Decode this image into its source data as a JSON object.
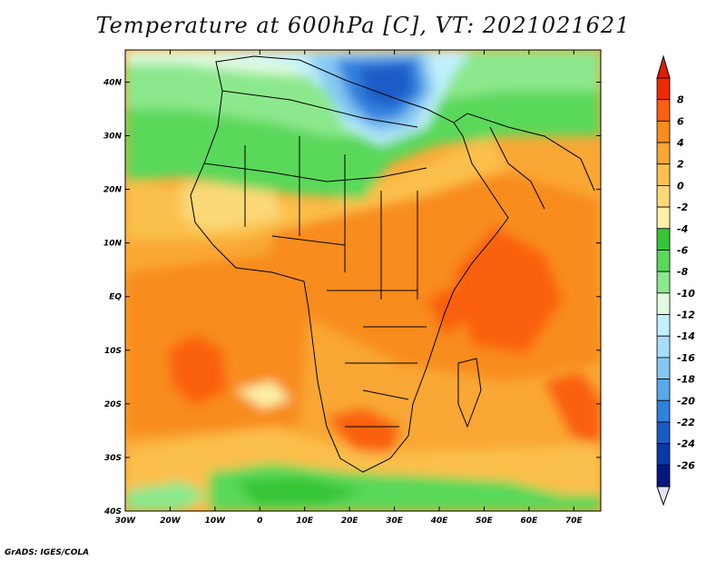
{
  "title": "Temperature at 600hPa [C], VT: 2021021621",
  "footer": "GrADS: IGES/COLA",
  "map": {
    "variable": "Temperature",
    "level": "600hPa",
    "units": "C",
    "valid_time": "2021021621",
    "lon_range": [
      -30,
      76
    ],
    "lat_range": [
      -40,
      46
    ],
    "lon_ticks": [
      {
        "value": -30,
        "label": "30W"
      },
      {
        "value": -20,
        "label": "20W"
      },
      {
        "value": -10,
        "label": "10W"
      },
      {
        "value": 0,
        "label": "0"
      },
      {
        "value": 10,
        "label": "10E"
      },
      {
        "value": 20,
        "label": "20E"
      },
      {
        "value": 30,
        "label": "30E"
      },
      {
        "value": 40,
        "label": "40E"
      },
      {
        "value": 50,
        "label": "50E"
      },
      {
        "value": 60,
        "label": "60E"
      },
      {
        "value": 70,
        "label": "70E"
      }
    ],
    "lat_ticks": [
      {
        "value": 40,
        "label": "40N"
      },
      {
        "value": 30,
        "label": "30N"
      },
      {
        "value": 20,
        "label": "20N"
      },
      {
        "value": 10,
        "label": "10N"
      },
      {
        "value": 0,
        "label": "EQ"
      },
      {
        "value": -10,
        "label": "10S"
      },
      {
        "value": -20,
        "label": "20S"
      },
      {
        "value": -30,
        "label": "30S"
      },
      {
        "value": -40,
        "label": "40S"
      }
    ]
  },
  "colorbar": {
    "labels": [
      "8",
      "6",
      "4",
      "2",
      "0",
      "-2",
      "-4",
      "-6",
      "-8",
      "-10",
      "-12",
      "-14",
      "-16",
      "-18",
      "-20",
      "-22",
      "-24",
      "-26"
    ],
    "colors": [
      "#f02a00",
      "#fa6010",
      "#f88c1e",
      "#f9a735",
      "#fbc04c",
      "#fbd878",
      "#fcf0a6",
      "#36c536",
      "#5ad85a",
      "#8ce88c",
      "#e0fbe0",
      "#c2f0ff",
      "#a6def8",
      "#84c8f2",
      "#58a8ea",
      "#3080de",
      "#1a5cc6",
      "#0a3aa8",
      "#061880"
    ],
    "top_color": "#e01e00",
    "bottom_color": "#e4e4f8"
  }
}
